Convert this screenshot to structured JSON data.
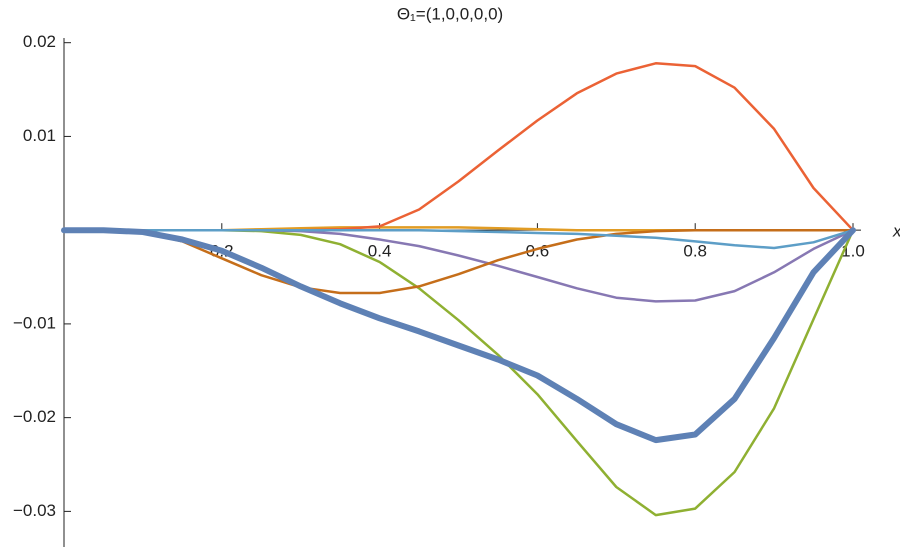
{
  "chart_data": {
    "type": "line",
    "title": "Θ₁=(1,0,0,0,0)",
    "x_label": "x",
    "x": [
      0,
      0.05,
      0.1,
      0.15,
      0.2,
      0.25,
      0.3,
      0.35,
      0.4,
      0.45,
      0.5,
      0.55,
      0.6,
      0.65,
      0.7,
      0.75,
      0.8,
      0.85,
      0.9,
      0.95,
      1
    ],
    "series": [
      {
        "color": "#5e81b5",
        "width": 6,
        "values": [
          0,
          0,
          -0.0002,
          -0.001,
          -0.0022,
          -0.004,
          -0.006,
          -0.0078,
          -0.0094,
          -0.0108,
          -0.0123,
          -0.0138,
          -0.0155,
          -0.018,
          -0.0207,
          -0.0224,
          -0.0218,
          -0.018,
          -0.0115,
          -0.0045,
          0
        ]
      },
      {
        "color": "#e19c24",
        "width": 2.5,
        "values": [
          0,
          0,
          0,
          0,
          0,
          0.0001,
          0.0002,
          0.0003,
          0.0003,
          0.0003,
          0.0003,
          0.0002,
          0.0001,
          0,
          0,
          0,
          0,
          0,
          0,
          0,
          0
        ]
      },
      {
        "color": "#8fb032",
        "width": 2.5,
        "values": [
          0,
          0,
          0,
          0,
          0,
          -0.0001,
          -0.0005,
          -0.0015,
          -0.0034,
          -0.0062,
          -0.0096,
          -0.0133,
          -0.0175,
          -0.0225,
          -0.0274,
          -0.0304,
          -0.0297,
          -0.0258,
          -0.019,
          -0.0095,
          0
        ]
      },
      {
        "color": "#eb6235",
        "width": 2.5,
        "values": [
          0,
          0,
          0,
          0,
          0,
          0,
          0,
          0.0001,
          0.0004,
          0.0022,
          0.0052,
          0.0085,
          0.0117,
          0.0146,
          0.0167,
          0.0178,
          0.0175,
          0.0152,
          0.0108,
          0.0045,
          0
        ]
      },
      {
        "color": "#8778b3",
        "width": 2.5,
        "values": [
          0,
          0,
          0,
          0,
          0,
          0,
          -0.0001,
          -0.0004,
          -0.001,
          -0.0017,
          -0.0027,
          -0.0038,
          -0.005,
          -0.0062,
          -0.0072,
          -0.0076,
          -0.0075,
          -0.0065,
          -0.0045,
          -0.002,
          0
        ]
      },
      {
        "color": "#c56e1a",
        "width": 2.5,
        "values": [
          0,
          0,
          -0.0002,
          -0.0012,
          -0.003,
          -0.0048,
          -0.0061,
          -0.0067,
          -0.0067,
          -0.006,
          -0.0047,
          -0.0032,
          -0.002,
          -0.001,
          -0.0004,
          -0.0001,
          0,
          0,
          0,
          0,
          0
        ]
      },
      {
        "color": "#5d9ec7",
        "width": 2.5,
        "values": [
          0,
          0,
          0,
          0,
          0,
          0,
          0,
          0,
          0,
          0,
          -0.0001,
          -0.0002,
          -0.0003,
          -0.0004,
          -0.0006,
          -0.0008,
          -0.0012,
          -0.0016,
          -0.0019,
          -0.0013,
          0
        ]
      }
    ],
    "xlim": [
      0,
      1
    ],
    "ylim": [
      -0.0338,
      0.0205
    ],
    "xticks": [
      0.2,
      0.4,
      0.6,
      0.8,
      {
        "value": 1,
        "label": "1.0"
      }
    ],
    "yticks": [
      0.02,
      0.01,
      {
        "value": -0.01,
        "label": "−0.01"
      },
      {
        "value": -0.02,
        "label": "−0.02"
      },
      {
        "value": -0.03,
        "label": "−0.03"
      }
    ]
  }
}
